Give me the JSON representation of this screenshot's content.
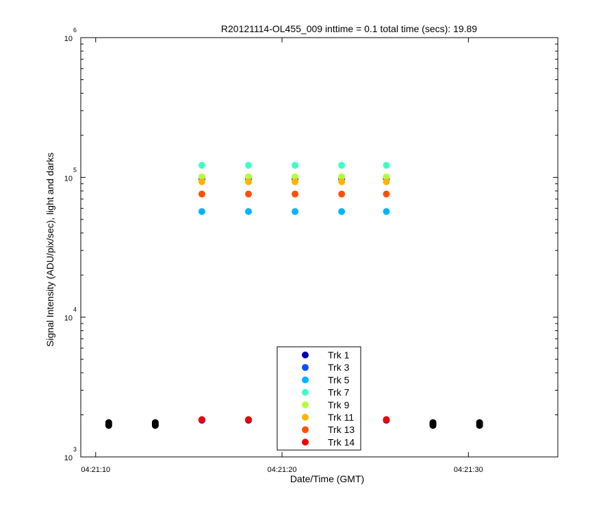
{
  "chart_data": {
    "type": "scatter",
    "title": "R20121114-OL455_009 inttime = 0.1 total time (secs): 19.89",
    "xlabel": "Date/Time (GMT)",
    "ylabel": "Signal Intensity (ADU/pix/sec), light and darks",
    "xlim": [
      "04:21:09.2",
      "04:21:34.8"
    ],
    "ylim": [
      1000,
      1000000
    ],
    "yscale": "log",
    "x_ticks": [
      "04:21:10",
      "04:21:20",
      "04:21:30"
    ],
    "y_ticks": [
      {
        "base": "10",
        "exp": "3"
      },
      {
        "base": "10",
        "exp": "4"
      },
      {
        "base": "10",
        "exp": "5"
      },
      {
        "base": "10",
        "exp": "6"
      }
    ],
    "grid": false,
    "legend_position": "bottom-center",
    "legend_entries": [
      "Trk 1",
      "Trk 3",
      "Trk 5",
      "Trk 7",
      "Trk 9",
      "Trk 11",
      "Trk 13",
      "Trk 14"
    ],
    "series": [
      {
        "name": "Trk 1",
        "color": "#0000b4",
        "x": [
          "04:21:15.7",
          "04:21:18.2",
          "04:21:20.7",
          "04:21:23.2",
          "04:21:25.6"
        ],
        "values": [
          98000,
          98000,
          98000,
          98000,
          98000
        ]
      },
      {
        "name": "Trk 3",
        "color": "#0050ff",
        "x": [
          "04:21:15.7",
          "04:21:18.2",
          "04:21:20.7",
          "04:21:23.2",
          "04:21:25.6"
        ],
        "values": [
          98000,
          98000,
          98000,
          98000,
          98000
        ]
      },
      {
        "name": "Trk 5",
        "color": "#00b4ff",
        "x": [
          "04:21:15.7",
          "04:21:18.2",
          "04:21:20.7",
          "04:21:23.2",
          "04:21:25.6"
        ],
        "values": [
          57000,
          57000,
          57000,
          57000,
          57000
        ]
      },
      {
        "name": "Trk 7",
        "color": "#3cffc8",
        "x": [
          "04:21:15.7",
          "04:21:18.2",
          "04:21:20.7",
          "04:21:23.2",
          "04:21:25.6"
        ],
        "values": [
          122000,
          122000,
          122000,
          122000,
          122000
        ]
      },
      {
        "name": "Trk 9",
        "color": "#b4ff3c",
        "x": [
          "04:21:15.7",
          "04:21:18.2",
          "04:21:20.7",
          "04:21:23.2",
          "04:21:25.6"
        ],
        "values": [
          101000,
          101000,
          101000,
          101000,
          101000
        ]
      },
      {
        "name": "Trk 11",
        "color": "#ffb400",
        "x": [
          "04:21:15.7",
          "04:21:18.2",
          "04:21:20.7",
          "04:21:23.2",
          "04:21:25.6"
        ],
        "values": [
          93000,
          93000,
          93000,
          93000,
          93000
        ]
      },
      {
        "name": "Trk 13",
        "color": "#ff5000",
        "x": [
          "04:21:15.7",
          "04:21:18.2",
          "04:21:20.7",
          "04:21:23.2",
          "04:21:25.6"
        ],
        "values": [
          76000,
          76000,
          76000,
          76000,
          76000
        ]
      },
      {
        "name": "Trk 14",
        "color": "#f00000",
        "x": [
          "04:21:15.7",
          "04:21:18.2",
          "04:21:25.6"
        ],
        "values": [
          1850,
          1850,
          1850
        ]
      }
    ],
    "dark_points": {
      "color": "#000000",
      "x": [
        "04:21:10.7",
        "04:21:13.2",
        "04:21:28.1",
        "04:21:30.6"
      ],
      "values_per_x": [
        1680,
        1720,
        1760
      ]
    },
    "underlying_light_points": {
      "color": "#0000b4",
      "x": [
        "04:21:15.7",
        "04:21:18.2",
        "04:21:25.6"
      ],
      "values": [
        1830
      ]
    }
  }
}
